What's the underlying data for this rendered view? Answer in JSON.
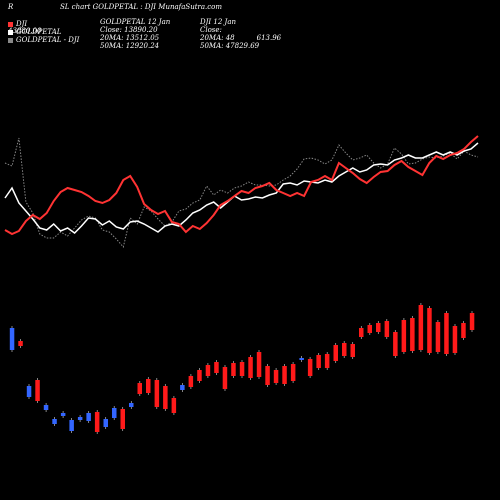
{
  "header": {
    "title_left": "R",
    "title_main": "SL chart GOLDPETAL : DJI MunafaSutra.com"
  },
  "legend": {
    "entries": [
      {
        "label": "DJI",
        "color": "#ff3333"
      },
      {
        "label": "GOLDPETAL",
        "color": "#ffffff"
      },
      {
        "label": "GOLDPETAL - DJI",
        "color": "#888888"
      }
    ],
    "value_text": "43880.00"
  },
  "info_goldpetal": {
    "line1": "GOLDPETAL 12 Jan",
    "line2": "Close: 13890.20",
    "line3": "20MA: 13512.05",
    "line4": "50MA: 12920.24"
  },
  "info_dji": {
    "line1": "DJI 12 Jan",
    "line2": "Close:",
    "line3": "20MA: 48",
    "line3b": "613.96",
    "line4": "50MA: 47829.69"
  },
  "colors": {
    "dji": "#ff3333",
    "goldpetal": "#ffffff",
    "ratio": "#888888",
    "candle_up": "#ff1a1a",
    "candle_down": "#3366ff"
  },
  "chart_data": {
    "type": "line",
    "series": [
      {
        "name": "GOLDPETAL",
        "values": [
          198,
          188,
          203,
          211,
          219,
          228,
          230,
          224,
          231,
          228,
          233,
          226,
          218,
          219,
          225,
          221,
          227,
          229,
          222,
          221,
          224,
          228,
          232,
          226,
          224,
          226,
          220,
          213,
          210,
          205,
          202,
          208,
          202,
          196,
          200,
          199,
          197,
          198,
          195,
          193,
          184,
          183,
          185,
          181,
          182,
          183,
          180,
          182,
          176,
          172,
          168,
          172,
          170,
          165,
          164,
          165,
          160,
          158,
          155,
          158,
          158,
          155,
          152,
          155,
          152,
          155,
          151,
          149,
          143
        ]
      },
      {
        "name": "DJI",
        "values": [
          230,
          234,
          231,
          221,
          215,
          219,
          213,
          201,
          192,
          188,
          190,
          192,
          196,
          201,
          203,
          200,
          193,
          180,
          176,
          187,
          204,
          210,
          214,
          211,
          222,
          224,
          232,
          226,
          229,
          223,
          215,
          205,
          201,
          196,
          191,
          193,
          188,
          186,
          183,
          190,
          193,
          196,
          193,
          196,
          182,
          180,
          176,
          180,
          163,
          168,
          173,
          179,
          183,
          177,
          172,
          171,
          165,
          161,
          167,
          171,
          175,
          163,
          156,
          159,
          155,
          153,
          149,
          142,
          136
        ]
      },
      {
        "name": "GOLDPETAL - DJI",
        "values": [
          163,
          166,
          138,
          202,
          213,
          234,
          238,
          238,
          232,
          236,
          228,
          220,
          216,
          218,
          230,
          232,
          239,
          247,
          218,
          224,
          207,
          211,
          219,
          226,
          222,
          211,
          209,
          203,
          200,
          186,
          195,
          190,
          193,
          188,
          186,
          182,
          185,
          185,
          186,
          185,
          180,
          176,
          169,
          159,
          158,
          160,
          164,
          160,
          145,
          153,
          160,
          158,
          155,
          163,
          168,
          164,
          148,
          154,
          164,
          163,
          159,
          157,
          158,
          156,
          153,
          159,
          151,
          155,
          157
        ]
      }
    ],
    "candles": [
      {
        "y1": 328,
        "y2": 350,
        "up": false
      },
      {
        "y1": 341,
        "y2": 346,
        "up": true
      },
      {
        "y1": 386,
        "y2": 397,
        "up": false
      },
      {
        "y1": 380,
        "y2": 401,
        "up": true
      },
      {
        "y1": 405,
        "y2": 410,
        "up": false
      },
      {
        "y1": 419,
        "y2": 424,
        "up": false
      },
      {
        "y1": 413,
        "y2": 416,
        "up": false
      },
      {
        "y1": 420,
        "y2": 431,
        "up": false
      },
      {
        "y1": 417,
        "y2": 420,
        "up": false
      },
      {
        "y1": 413,
        "y2": 421,
        "up": false
      },
      {
        "y1": 412,
        "y2": 432,
        "up": true
      },
      {
        "y1": 419,
        "y2": 427,
        "up": false
      },
      {
        "y1": 408,
        "y2": 418,
        "up": false
      },
      {
        "y1": 409,
        "y2": 429,
        "up": true
      },
      {
        "y1": 403,
        "y2": 407,
        "up": false
      },
      {
        "y1": 383,
        "y2": 394,
        "up": true
      },
      {
        "y1": 379,
        "y2": 393,
        "up": true
      },
      {
        "y1": 380,
        "y2": 407,
        "up": true
      },
      {
        "y1": 386,
        "y2": 409,
        "up": true
      },
      {
        "y1": 398,
        "y2": 413,
        "up": true
      },
      {
        "y1": 385,
        "y2": 390,
        "up": false
      },
      {
        "y1": 376,
        "y2": 387,
        "up": true
      },
      {
        "y1": 370,
        "y2": 381,
        "up": true
      },
      {
        "y1": 365,
        "y2": 376,
        "up": true
      },
      {
        "y1": 362,
        "y2": 373,
        "up": true
      },
      {
        "y1": 367,
        "y2": 389,
        "up": true
      },
      {
        "y1": 363,
        "y2": 376,
        "up": true
      },
      {
        "y1": 362,
        "y2": 376,
        "up": true
      },
      {
        "y1": 357,
        "y2": 378,
        "up": true
      },
      {
        "y1": 352,
        "y2": 377,
        "up": true
      },
      {
        "y1": 366,
        "y2": 385,
        "up": true
      },
      {
        "y1": 370,
        "y2": 383,
        "up": true
      },
      {
        "y1": 366,
        "y2": 384,
        "up": true
      },
      {
        "y1": 364,
        "y2": 381,
        "up": true
      },
      {
        "y1": 358,
        "y2": 360,
        "up": false
      },
      {
        "y1": 359,
        "y2": 376,
        "up": true
      },
      {
        "y1": 355,
        "y2": 368,
        "up": true
      },
      {
        "y1": 354,
        "y2": 368,
        "up": true
      },
      {
        "y1": 345,
        "y2": 361,
        "up": true
      },
      {
        "y1": 343,
        "y2": 356,
        "up": true
      },
      {
        "y1": 344,
        "y2": 357,
        "up": true
      },
      {
        "y1": 328,
        "y2": 337,
        "up": true
      },
      {
        "y1": 325,
        "y2": 333,
        "up": true
      },
      {
        "y1": 323,
        "y2": 332,
        "up": true
      },
      {
        "y1": 321,
        "y2": 337,
        "up": true
      },
      {
        "y1": 332,
        "y2": 356,
        "up": true
      },
      {
        "y1": 320,
        "y2": 352,
        "up": true
      },
      {
        "y1": 318,
        "y2": 351,
        "up": true
      },
      {
        "y1": 305,
        "y2": 350,
        "up": true
      },
      {
        "y1": 308,
        "y2": 353,
        "up": true
      },
      {
        "y1": 322,
        "y2": 352,
        "up": true
      },
      {
        "y1": 313,
        "y2": 354,
        "up": true
      },
      {
        "y1": 326,
        "y2": 353,
        "up": true
      },
      {
        "y1": 323,
        "y2": 338,
        "up": true
      },
      {
        "y1": 313,
        "y2": 330,
        "up": true
      }
    ]
  }
}
